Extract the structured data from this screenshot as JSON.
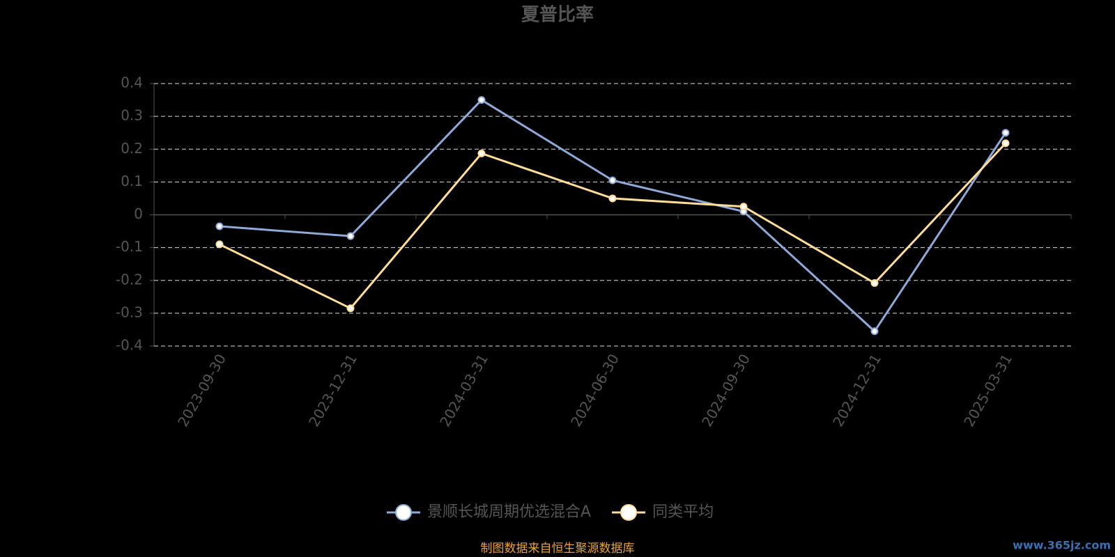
{
  "chart_data": {
    "type": "line",
    "title": "夏普比率",
    "categories": [
      "2023-09-30",
      "2023-12-31",
      "2024-03-31",
      "2024-06-30",
      "2024-09-30",
      "2024-12-31",
      "2025-03-31"
    ],
    "series": [
      {
        "name": "景顺长城周期优选混合A",
        "color": "#8fa9d8",
        "values": [
          -0.035,
          -0.065,
          0.35,
          0.105,
          0.01,
          -0.355,
          0.25
        ]
      },
      {
        "name": "同类平均",
        "color": "#ffdd99",
        "values": [
          -0.09,
          -0.285,
          0.187,
          0.05,
          0.025,
          -0.208,
          0.218
        ]
      }
    ],
    "ylim": [
      -0.4,
      0.4
    ],
    "yticks": [
      -0.4,
      -0.3,
      -0.2,
      -0.1,
      0,
      0.1,
      0.2,
      0.3,
      0.4
    ],
    "grid": true,
    "legend": "bottom",
    "source": "制图数据来自恒生聚源数据库",
    "watermark": "www.365jz.com"
  }
}
